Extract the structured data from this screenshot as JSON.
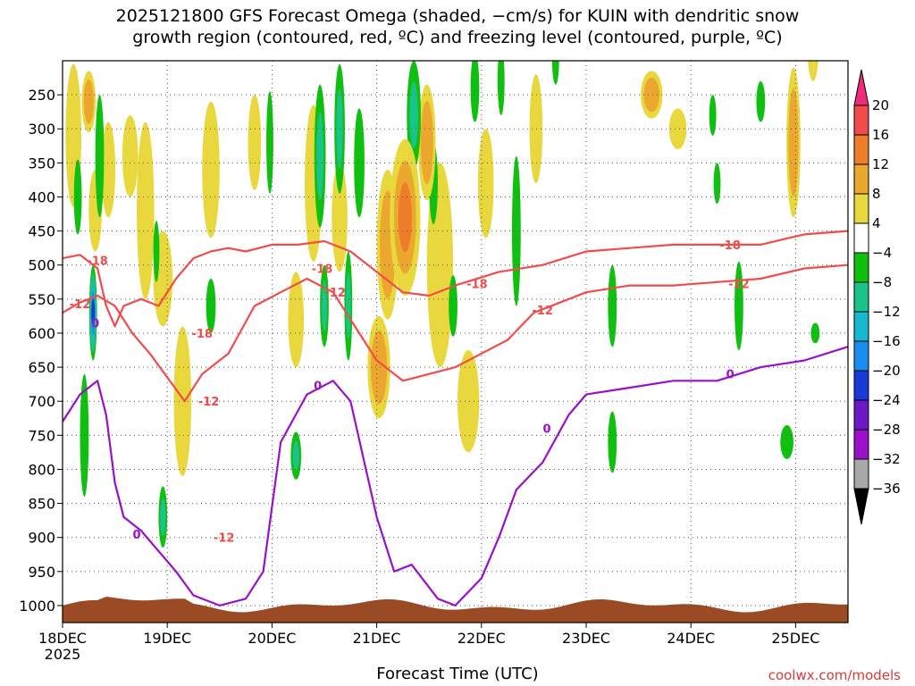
{
  "title": "2025121800 GFS Forecast Omega (shaded, −cm/s) for KUIN with dendritic snow\ngrowth region (contoured, red, ºC) and freezing level (contoured, purple, ºC)",
  "xlabel": "Forecast Time (UTC)",
  "credit": "coolwx.com/models",
  "colors": {
    "surface": "#9c4a23",
    "red_contour": "#f24b4b",
    "purple_contour": "#9a10c8",
    "grid": "#555555"
  },
  "chart_data": {
    "type": "heatmap",
    "title": "2025121800 GFS Forecast Omega (shaded, −cm/s) for KUIN",
    "xlabel": "Forecast Time (UTC)",
    "ylabel": "Pressure (hPa)",
    "x_start_hours": 0,
    "x_end_hours": 180,
    "x_ticks": [
      {
        "hours": 0,
        "label": "18DEC",
        "sub": "2025"
      },
      {
        "hours": 24,
        "label": "19DEC"
      },
      {
        "hours": 48,
        "label": "20DEC"
      },
      {
        "hours": 72,
        "label": "21DEC"
      },
      {
        "hours": 96,
        "label": "22DEC"
      },
      {
        "hours": 120,
        "label": "23DEC"
      },
      {
        "hours": 144,
        "label": "24DEC"
      },
      {
        "hours": 168,
        "label": "25DEC"
      }
    ],
    "y_range_hpa": [
      200,
      1025
    ],
    "y_ticks": [
      250,
      300,
      350,
      400,
      450,
      500,
      550,
      600,
      650,
      700,
      750,
      800,
      850,
      900,
      950,
      1000
    ],
    "colorbar": {
      "labels": [
        "20",
        "16",
        "12",
        "8",
        "4",
        "−4",
        "−8",
        "−12",
        "−16",
        "−20",
        "−24",
        "−28",
        "−32",
        "−36"
      ],
      "colors": [
        "#f02a7a",
        "#f24b4b",
        "#ec7e2a",
        "#eba72e",
        "#e8d83e",
        "#ffffff",
        "#10c010",
        "#19c38a",
        "#18b8d0",
        "#1a8ef0",
        "#1a3ad8",
        "#6a18c8",
        "#9a10c8",
        "#a8a8a8",
        "#000000"
      ]
    },
    "omega_blobs": [
      {
        "t": 2.5,
        "p": 310,
        "dt": 1.8,
        "dp": 210,
        "v": 6
      },
      {
        "t": 6.0,
        "p": 260,
        "dt": 1.6,
        "dp": 90,
        "v": 10
      },
      {
        "t": 7.5,
        "p": 420,
        "dt": 1.5,
        "dp": 120,
        "v": 7
      },
      {
        "t": 10.5,
        "p": 360,
        "dt": 1.6,
        "dp": 140,
        "v": 6
      },
      {
        "t": 15.5,
        "p": 340,
        "dt": 1.8,
        "dp": 120,
        "v": 6
      },
      {
        "t": 19.0,
        "p": 420,
        "dt": 2.0,
        "dp": 260,
        "v": 6
      },
      {
        "t": 23.0,
        "p": 520,
        "dt": 2.2,
        "dp": 140,
        "v": 5
      },
      {
        "t": 27.5,
        "p": 700,
        "dt": 2.0,
        "dp": 220,
        "v": 6
      },
      {
        "t": 34.0,
        "p": 360,
        "dt": 2.0,
        "dp": 200,
        "v": 6
      },
      {
        "t": 44.0,
        "p": 320,
        "dt": 1.5,
        "dp": 140,
        "v": 5
      },
      {
        "t": 53.5,
        "p": 580,
        "dt": 1.8,
        "dp": 140,
        "v": 6
      },
      {
        "t": 57.5,
        "p": 380,
        "dt": 2.0,
        "dp": 230,
        "v": 7
      },
      {
        "t": 63.5,
        "p": 430,
        "dt": 1.8,
        "dp": 160,
        "v": 6
      },
      {
        "t": 72.5,
        "p": 650,
        "dt": 2.6,
        "dp": 150,
        "v": 10
      },
      {
        "t": 74.5,
        "p": 470,
        "dt": 2.5,
        "dp": 220,
        "v": 10
      },
      {
        "t": 78.5,
        "p": 430,
        "dt": 3.5,
        "dp": 230,
        "v": 12
      },
      {
        "t": 83.5,
        "p": 320,
        "dt": 2.0,
        "dp": 170,
        "v": 10
      },
      {
        "t": 86.5,
        "p": 500,
        "dt": 3.0,
        "dp": 300,
        "v": 7
      },
      {
        "t": 93.0,
        "p": 700,
        "dt": 2.5,
        "dp": 150,
        "v": 5
      },
      {
        "t": 97.0,
        "p": 380,
        "dt": 1.8,
        "dp": 160,
        "v": 5
      },
      {
        "t": 108.5,
        "p": 300,
        "dt": 1.5,
        "dp": 160,
        "v": 5
      },
      {
        "t": 127.5,
        "p": 160,
        "dt": 1.3,
        "dp": 60,
        "v": 5
      },
      {
        "t": 135.0,
        "p": 250,
        "dt": 2.5,
        "dp": 70,
        "v": 9
      },
      {
        "t": 141.0,
        "p": 300,
        "dt": 2.0,
        "dp": 60,
        "v": 5
      },
      {
        "t": 167.5,
        "p": 320,
        "dt": 1.6,
        "dp": 220,
        "v": 9
      },
      {
        "t": 172.0,
        "p": 180,
        "dt": 1.3,
        "dp": 100,
        "v": 5
      },
      {
        "t": 7.0,
        "p": 570,
        "dt": 0.9,
        "dp": 140,
        "v": -22
      },
      {
        "t": 5.0,
        "p": 750,
        "dt": 1.0,
        "dp": 180,
        "v": -8
      },
      {
        "t": 8.5,
        "p": 340,
        "dt": 1.0,
        "dp": 180,
        "v": -8
      },
      {
        "t": 3.5,
        "p": 400,
        "dt": 0.9,
        "dp": 110,
        "v": -8
      },
      {
        "t": 21.5,
        "p": 480,
        "dt": 0.7,
        "dp": 90,
        "v": -8
      },
      {
        "t": 23.0,
        "p": 870,
        "dt": 1.0,
        "dp": 90,
        "v": -12
      },
      {
        "t": 34.0,
        "p": 560,
        "dt": 1.1,
        "dp": 80,
        "v": -8
      },
      {
        "t": 47.5,
        "p": 320,
        "dt": 0.8,
        "dp": 150,
        "v": -6
      },
      {
        "t": 53.5,
        "p": 780,
        "dt": 1.2,
        "dp": 70,
        "v": -10
      },
      {
        "t": 59.0,
        "p": 340,
        "dt": 1.3,
        "dp": 210,
        "v": -10
      },
      {
        "t": 60.0,
        "p": 560,
        "dt": 1.0,
        "dp": 120,
        "v": -12
      },
      {
        "t": 63.5,
        "p": 300,
        "dt": 1.2,
        "dp": 190,
        "v": -10
      },
      {
        "t": 65.5,
        "p": 560,
        "dt": 0.9,
        "dp": 160,
        "v": -10
      },
      {
        "t": 68.0,
        "p": 350,
        "dt": 1.2,
        "dp": 160,
        "v": -8
      },
      {
        "t": 80.5,
        "p": 280,
        "dt": 1.6,
        "dp": 160,
        "v": -10
      },
      {
        "t": 85.0,
        "p": 380,
        "dt": 1.0,
        "dp": 120,
        "v": -8
      },
      {
        "t": 89.5,
        "p": 560,
        "dt": 1.0,
        "dp": 90,
        "v": -8
      },
      {
        "t": 94.5,
        "p": 240,
        "dt": 1.0,
        "dp": 100,
        "v": -8
      },
      {
        "t": 100.5,
        "p": 230,
        "dt": 0.8,
        "dp": 100,
        "v": -8
      },
      {
        "t": 104.0,
        "p": 450,
        "dt": 1.0,
        "dp": 220,
        "v": -8
      },
      {
        "t": 113.0,
        "p": 200,
        "dt": 0.8,
        "dp": 70,
        "v": -8
      },
      {
        "t": 126.0,
        "p": 560,
        "dt": 1.0,
        "dp": 120,
        "v": -8
      },
      {
        "t": 126.0,
        "p": 760,
        "dt": 1.0,
        "dp": 90,
        "v": -8
      },
      {
        "t": 149.0,
        "p": 280,
        "dt": 0.8,
        "dp": 60,
        "v": -8
      },
      {
        "t": 150.0,
        "p": 380,
        "dt": 0.8,
        "dp": 60,
        "v": -8
      },
      {
        "t": 155.0,
        "p": 560,
        "dt": 1.0,
        "dp": 130,
        "v": -8
      },
      {
        "t": 160.0,
        "p": 260,
        "dt": 1.0,
        "dp": 60,
        "v": -8
      },
      {
        "t": 166.0,
        "p": 760,
        "dt": 1.5,
        "dp": 50,
        "v": -8
      },
      {
        "t": 172.5,
        "p": 600,
        "dt": 1.0,
        "dp": 30,
        "v": -8
      }
    ],
    "contours": [
      {
        "label": "-18",
        "color": "#f24b4b",
        "t": [
          0,
          4,
          8,
          10,
          12,
          14,
          18,
          22,
          26,
          30,
          34,
          38,
          42,
          48,
          54,
          60,
          66,
          72,
          78,
          84,
          90,
          100,
          110,
          120,
          130,
          140,
          150,
          160,
          170,
          180
        ],
        "p": [
          490,
          485,
          505,
          560,
          590,
          560,
          550,
          560,
          520,
          490,
          480,
          475,
          480,
          470,
          470,
          465,
          480,
          510,
          540,
          545,
          530,
          510,
          500,
          480,
          475,
          470,
          470,
          470,
          455,
          450
        ]
      },
      {
        "label": "-12",
        "color": "#f24b4b",
        "t": [
          0,
          4,
          8,
          12,
          16,
          20,
          24,
          28,
          32,
          38,
          44,
          50,
          56,
          62,
          68,
          72,
          78,
          84,
          90,
          96,
          102,
          108,
          114,
          120,
          130,
          140,
          150,
          160,
          170,
          180
        ],
        "p": [
          570,
          555,
          545,
          560,
          600,
          630,
          665,
          700,
          660,
          630,
          560,
          540,
          520,
          540,
          600,
          640,
          670,
          660,
          650,
          630,
          610,
          570,
          555,
          540,
          530,
          530,
          525,
          520,
          505,
          500
        ]
      },
      {
        "label": "0",
        "color": "#9a10c8",
        "t": [
          0,
          4,
          8,
          10,
          12,
          14,
          18,
          22,
          26,
          30,
          36,
          42,
          46,
          50,
          56,
          62,
          66,
          72,
          76,
          80,
          86,
          90,
          96,
          100,
          104,
          110,
          116,
          120,
          130,
          140,
          150,
          160,
          170,
          180
        ],
        "p": [
          730,
          690,
          670,
          720,
          820,
          870,
          890,
          920,
          950,
          985,
          1000,
          990,
          950,
          760,
          690,
          670,
          700,
          870,
          950,
          940,
          990,
          1000,
          960,
          900,
          830,
          790,
          720,
          690,
          680,
          670,
          670,
          650,
          640,
          620
        ]
      }
    ],
    "contour_labels": [
      {
        "text": "-18",
        "t": 8.0,
        "p": 493,
        "color": "#f24b4b"
      },
      {
        "text": "-18",
        "t": 32.0,
        "p": 600,
        "color": "#f24b4b"
      },
      {
        "text": "-18",
        "t": 59.5,
        "p": 505,
        "color": "#f24b4b"
      },
      {
        "text": "-18",
        "t": 95.0,
        "p": 527,
        "color": "#f24b4b"
      },
      {
        "text": "-18",
        "t": 153.0,
        "p": 470,
        "color": "#f24b4b"
      },
      {
        "text": "-12",
        "t": 4.0,
        "p": 557,
        "color": "#f24b4b"
      },
      {
        "text": "-12",
        "t": 33.5,
        "p": 700,
        "color": "#f24b4b"
      },
      {
        "text": "-12",
        "t": 37.0,
        "p": 900,
        "color": "#f24b4b"
      },
      {
        "text": "-12",
        "t": 62.5,
        "p": 540,
        "color": "#f24b4b"
      },
      {
        "text": "-12",
        "t": 110.0,
        "p": 566,
        "color": "#f24b4b"
      },
      {
        "text": "-12",
        "t": 155.0,
        "p": 527,
        "color": "#f24b4b"
      },
      {
        "text": "0",
        "t": 7.5,
        "p": 585,
        "color": "#9a10c8"
      },
      {
        "text": "0",
        "t": 17.0,
        "p": 895,
        "color": "#9a10c8"
      },
      {
        "text": "0",
        "t": 58.5,
        "p": 677,
        "color": "#9a10c8"
      },
      {
        "text": "0",
        "t": 111.0,
        "p": 740,
        "color": "#9a10c8"
      },
      {
        "text": "0",
        "t": 153.0,
        "p": 660,
        "color": "#9a10c8"
      }
    ]
  }
}
